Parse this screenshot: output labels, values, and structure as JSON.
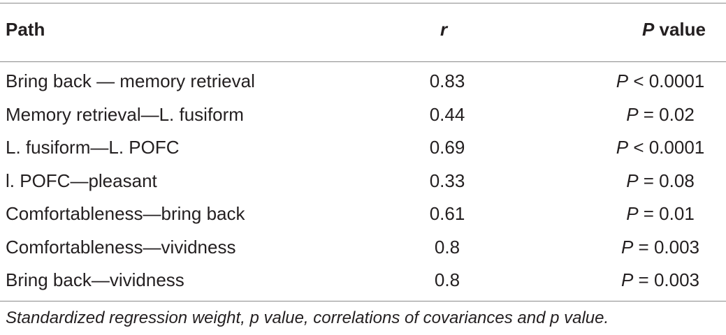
{
  "table": {
    "headers": {
      "path": "Path",
      "r": "r",
      "p_italic": "P",
      "p_rest": " value"
    },
    "rows": [
      {
        "path": "Bring back — memory retrieval",
        "r": "0.83",
        "p_symbol": "P",
        "p_rest": " < 0.0001"
      },
      {
        "path": "Memory retrieval—L. fusiform",
        "r": "0.44",
        "p_symbol": "P",
        "p_rest": " = 0.02"
      },
      {
        "path": "L. fusiform—L. POFC",
        "r": "0.69",
        "p_symbol": "P",
        "p_rest": " < 0.0001"
      },
      {
        "path": "l. POFC—pleasant",
        "r": "0.33",
        "p_symbol": "P",
        "p_rest": " = 0.08"
      },
      {
        "path": "Comfortableness—bring back",
        "r": "0.61",
        "p_symbol": "P",
        "p_rest": " = 0.01"
      },
      {
        "path": "Comfortableness—vividness",
        "r": "0.8",
        "p_symbol": "P",
        "p_rest": " = 0.003"
      },
      {
        "path": "Bring back—vividness",
        "r": "0.8",
        "p_symbol": "P",
        "p_rest": " = 0.003"
      }
    ],
    "footnote": "Standardized regression weight, p value, correlations of covariances and p value."
  }
}
